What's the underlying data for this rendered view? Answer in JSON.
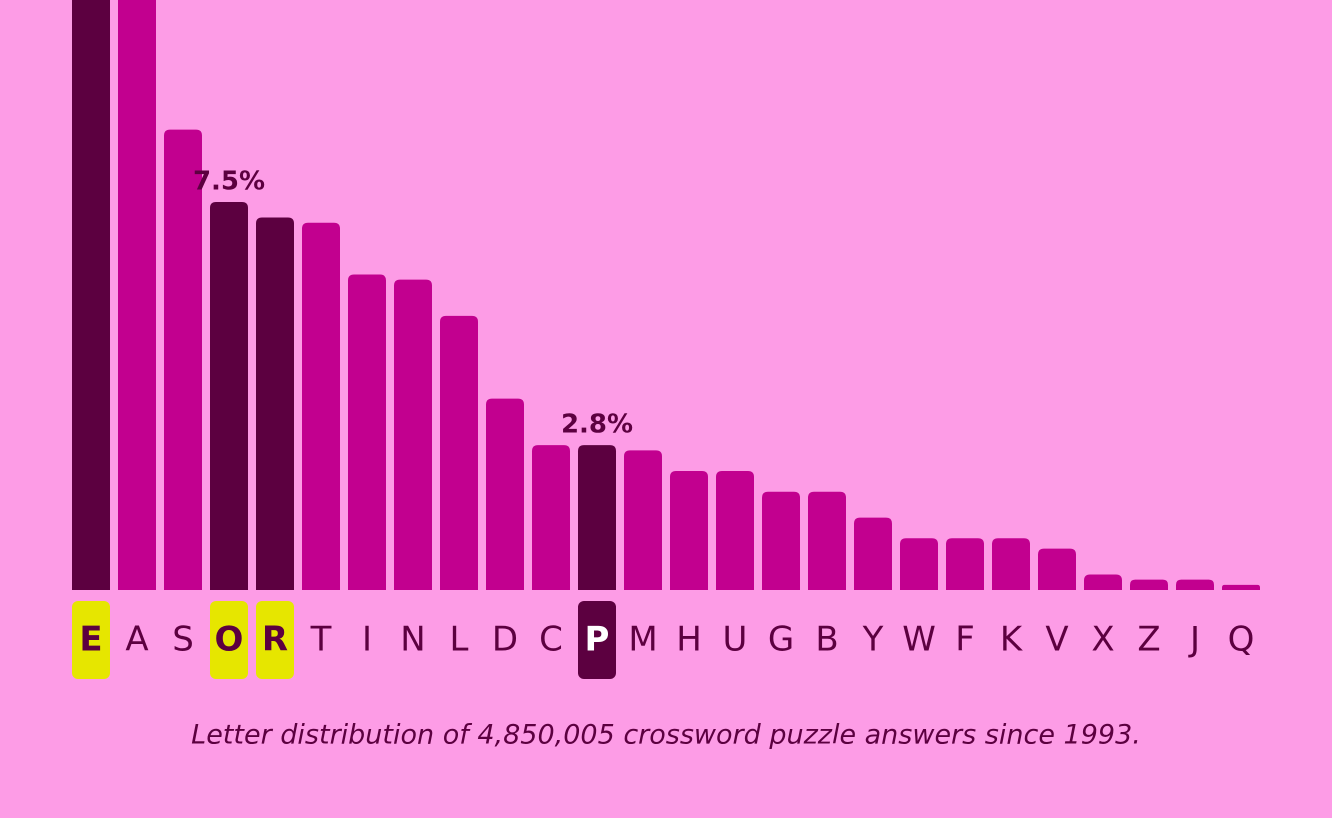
{
  "chart_data": {
    "type": "bar",
    "caption": "Letter distribution of 4,850,005 crossword puzzle answers since 1993.",
    "categories": [
      "E",
      "A",
      "S",
      "O",
      "R",
      "T",
      "I",
      "N",
      "L",
      "D",
      "C",
      "P",
      "M",
      "H",
      "U",
      "G",
      "B",
      "Y",
      "W",
      "F",
      "K",
      "V",
      "X",
      "Z",
      "J",
      "Q"
    ],
    "values": [
      12.5,
      11.6,
      8.9,
      7.5,
      7.2,
      7.1,
      6.1,
      6.0,
      5.3,
      3.7,
      2.8,
      2.8,
      2.7,
      2.3,
      2.3,
      1.9,
      1.9,
      1.4,
      1.0,
      1.0,
      1.0,
      0.8,
      0.3,
      0.2,
      0.2,
      0.1
    ],
    "value_labels": [
      null,
      null,
      null,
      "7.5%",
      null,
      null,
      null,
      null,
      null,
      null,
      null,
      "2.8%",
      null,
      null,
      null,
      null,
      null,
      null,
      null,
      null,
      null,
      null,
      null,
      null,
      null,
      null
    ],
    "colors": [
      "#5c0040",
      "#c2008f",
      "#c2008f",
      "#5c0040",
      "#5c0040",
      "#c2008f",
      "#c2008f",
      "#c2008f",
      "#c2008f",
      "#c2008f",
      "#c2008f",
      "#5c0040",
      "#c2008f",
      "#c2008f",
      "#c2008f",
      "#c2008f",
      "#c2008f",
      "#c2008f",
      "#c2008f",
      "#c2008f",
      "#c2008f",
      "#c2008f",
      "#c2008f",
      "#c2008f",
      "#c2008f",
      "#c2008f"
    ],
    "label_backgrounds": [
      "#e6e600",
      null,
      null,
      "#e6e600",
      "#e6e600",
      null,
      null,
      null,
      null,
      null,
      null,
      "#5c0040",
      null,
      null,
      null,
      null,
      null,
      null,
      null,
      null,
      null,
      null,
      null,
      null,
      null,
      null
    ],
    "label_colors": [
      "#5c0040",
      "#5c0040",
      "#5c0040",
      "#5c0040",
      "#5c0040",
      "#5c0040",
      "#5c0040",
      "#5c0040",
      "#5c0040",
      "#5c0040",
      "#5c0040",
      "#ffffff",
      "#5c0040",
      "#5c0040",
      "#5c0040",
      "#5c0040",
      "#5c0040",
      "#5c0040",
      "#5c0040",
      "#5c0040",
      "#5c0040",
      "#5c0040",
      "#5c0040",
      "#5c0040",
      "#5c0040",
      "#5c0040"
    ]
  }
}
